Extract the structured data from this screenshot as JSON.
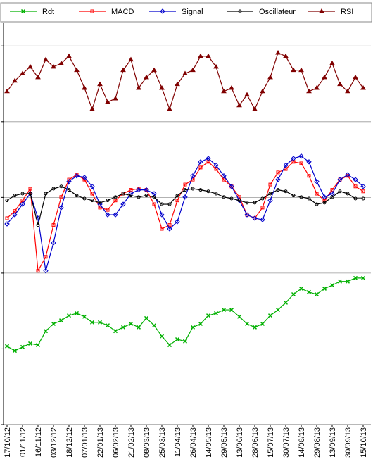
{
  "chart_data": {
    "type": "line",
    "categories": [
      "17/10/12",
      null,
      "01/11/12",
      null,
      "16/11/12",
      null,
      "03/12/12",
      null,
      "18/12/12",
      null,
      "07/01/13",
      null,
      "22/01/13",
      null,
      "06/02/13",
      null,
      "21/02/13",
      null,
      "08/03/13",
      null,
      "25/03/13",
      null,
      "11/04/13",
      null,
      "26/04/13",
      null,
      "14/05/13",
      null,
      "29/05/13",
      null,
      "13/06/13",
      null,
      "28/06/13",
      null,
      "15/07/13",
      null,
      "30/07/13",
      null,
      "14/08/13",
      null,
      "29/08/13",
      null,
      "13/09/13",
      null,
      "30/09/13",
      null,
      "15/10/13"
    ],
    "ylim": [
      0,
      106
    ],
    "yticks": [
      0,
      20,
      40,
      60,
      80,
      100
    ],
    "grid": true,
    "legend": "top",
    "series": [
      {
        "name": "Rdt",
        "color": "#00b000",
        "marker": "x",
        "values": [
          20.7,
          19.5,
          20.5,
          21.4,
          21.0,
          24.7,
          26.6,
          27.5,
          28.8,
          29.4,
          28.5,
          27.0,
          27.0,
          26.2,
          24.7,
          25.7,
          26.6,
          25.7,
          28.1,
          26.2,
          23.3,
          21.0,
          22.5,
          22.0,
          25.7,
          26.6,
          28.8,
          29.4,
          30.3,
          30.3,
          28.5,
          26.6,
          25.7,
          26.6,
          28.8,
          30.3,
          32.2,
          34.4,
          35.9,
          35.0,
          34.4,
          35.9,
          36.8,
          37.8,
          37.8,
          38.7,
          38.7
        ]
      },
      {
        "name": "MACD",
        "color": "#ff0000",
        "marker": "square",
        "values": [
          54.5,
          56.4,
          59.2,
          62.3,
          40.6,
          44.3,
          52.7,
          60.1,
          64.7,
          66.0,
          64.7,
          61.0,
          57.3,
          56.7,
          59.2,
          61.0,
          62.0,
          62.3,
          62.0,
          58.2,
          51.7,
          52.7,
          59.2,
          63.4,
          64.7,
          67.9,
          69.4,
          67.5,
          64.7,
          62.9,
          60.1,
          55.4,
          54.5,
          57.3,
          63.4,
          66.6,
          67.5,
          69.4,
          69.0,
          65.7,
          61.0,
          59.2,
          62.0,
          64.7,
          65.7,
          62.9,
          61.6
        ]
      },
      {
        "name": "Signal",
        "color": "#0000cc",
        "marker": "diamond",
        "values": [
          53.0,
          55.4,
          58.2,
          61.0,
          54.5,
          40.6,
          48.0,
          57.3,
          64.2,
          65.7,
          65.3,
          62.9,
          58.2,
          55.4,
          55.4,
          58.2,
          61.0,
          62.0,
          62.0,
          61.0,
          55.4,
          51.7,
          53.6,
          60.1,
          65.7,
          69.4,
          70.3,
          68.5,
          65.7,
          62.9,
          59.2,
          55.4,
          54.5,
          54.1,
          59.2,
          64.7,
          68.5,
          70.3,
          70.9,
          69.4,
          64.2,
          60.1,
          61.0,
          64.7,
          66.0,
          64.7,
          62.9
        ]
      },
      {
        "name": "Oscillateur",
        "color": "#000000",
        "marker": "circle",
        "values": [
          59.2,
          60.5,
          61.0,
          61.0,
          52.7,
          61.0,
          62.3,
          62.9,
          62.0,
          60.5,
          59.7,
          59.2,
          58.6,
          59.2,
          60.1,
          61.0,
          60.5,
          60.1,
          60.5,
          60.1,
          58.2,
          58.2,
          60.5,
          62.0,
          62.3,
          62.0,
          61.6,
          61.0,
          60.1,
          59.7,
          59.2,
          58.6,
          58.6,
          59.7,
          61.0,
          62.0,
          61.6,
          60.5,
          60.1,
          59.7,
          58.2,
          58.6,
          60.1,
          61.6,
          61.0,
          59.7,
          59.7
        ]
      },
      {
        "name": "RSI",
        "color": "#800000",
        "marker": "triangle",
        "values": [
          88.0,
          90.8,
          92.7,
          94.5,
          91.7,
          96.4,
          94.5,
          95.4,
          97.3,
          93.6,
          88.9,
          83.3,
          89.9,
          85.2,
          86.1,
          93.6,
          96.4,
          88.9,
          91.7,
          93.6,
          88.9,
          83.3,
          89.9,
          92.7,
          93.6,
          97.3,
          97.3,
          94.5,
          88.0,
          88.9,
          84.3,
          87.1,
          83.3,
          88.0,
          91.7,
          98.2,
          97.3,
          93.6,
          93.6,
          88.0,
          88.9,
          91.7,
          95.4,
          89.9,
          88.0,
          91.7,
          88.9
        ]
      }
    ]
  }
}
